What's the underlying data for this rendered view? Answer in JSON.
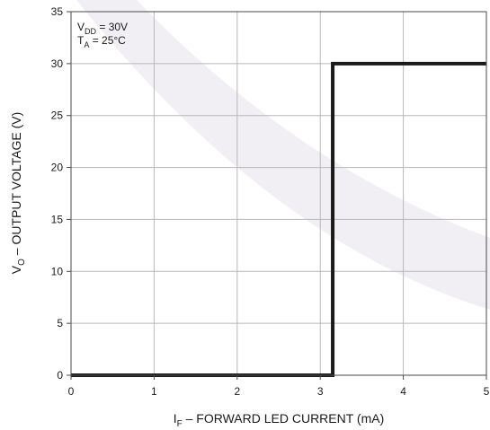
{
  "chart_data": {
    "type": "line",
    "xlabel": {
      "main": "I",
      "sub": "F",
      "rest": " – FORWARD LED CURRENT (mA)"
    },
    "ylabel": {
      "main": "V",
      "sub": "O",
      "rest": " – OUTPUT VOLTAGE (V)"
    },
    "xlim": [
      0,
      5
    ],
    "ylim": [
      0,
      35
    ],
    "x_ticks": [
      0,
      1,
      2,
      3,
      4,
      5
    ],
    "y_ticks": [
      0,
      5,
      10,
      15,
      20,
      25,
      30,
      35
    ],
    "x_tick_labels": [
      "0",
      "1",
      "2",
      "3",
      "4",
      "5"
    ],
    "y_tick_labels": [
      "0",
      "5",
      "10",
      "15",
      "20",
      "25",
      "30",
      "35"
    ],
    "grid": true,
    "annotations": [
      {
        "main": "V",
        "sub": "DD",
        "rest": " = 30V"
      },
      {
        "main": "T",
        "sub": "A",
        "rest": " = 25°C"
      }
    ],
    "annotation_placement": "top-left",
    "series": [
      {
        "x": [
          0,
          3.15,
          3.15,
          5
        ],
        "y": [
          0,
          0,
          30,
          30
        ],
        "color": "#1a1a1a"
      }
    ],
    "colors": {
      "frame": "#4a4a4a",
      "grid": "#b8b8b8",
      "line": "#1a1a1a",
      "watermark": "#f1eff4"
    }
  }
}
